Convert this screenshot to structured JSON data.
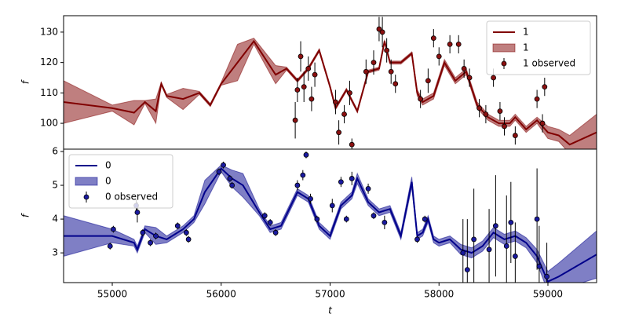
{
  "chart_data": [
    {
      "type": "line",
      "ylabel": "f",
      "legend": "upper right",
      "xlim": [
        54553,
        59447
      ],
      "ylim": [
        91.5,
        135.4
      ],
      "yticks": [
        100,
        110,
        120,
        130
      ],
      "series": [
        {
          "name": "1",
          "kind": "line",
          "color": "#800000",
          "x": [
            54553,
            55000,
            55200,
            55300,
            55400,
            55450,
            55500,
            55650,
            55800,
            55900,
            56000,
            56150,
            56300,
            56500,
            56600,
            56700,
            56800,
            56900,
            57000,
            57050,
            57150,
            57250,
            57350,
            57450,
            57500,
            57550,
            57650,
            57750,
            57800,
            57850,
            57950,
            58050,
            58150,
            58250,
            58350,
            58450,
            58550,
            58650,
            58700,
            58800,
            58900,
            59000,
            59100,
            59200,
            59447
          ],
          "values": [
            107,
            105,
            103.5,
            107,
            104,
            113,
            109,
            108,
            110,
            106,
            113,
            120,
            127,
            116,
            118,
            114,
            118,
            124,
            112,
            105,
            111,
            104,
            117,
            118,
            127,
            120,
            120,
            123,
            110,
            107,
            109,
            120,
            114,
            117,
            106,
            102,
            100,
            100,
            102,
            98,
            101,
            97,
            96,
            93,
            97
          ]
        },
        {
          "name": "1",
          "kind": "band",
          "color": "#800000",
          "x": [
            54553,
            55000,
            55200,
            55300,
            55400,
            55450,
            55500,
            55650,
            55800,
            55900,
            56000,
            56150,
            56300,
            56500,
            56600,
            56700,
            56800,
            56900,
            57000,
            57050,
            57150,
            57250,
            57350,
            57450,
            57500,
            57550,
            57650,
            57750,
            57800,
            57850,
            57950,
            58050,
            58150,
            58250,
            58350,
            58450,
            58550,
            58650,
            58700,
            58800,
            58900,
            59000,
            59100,
            59200,
            59447
          ],
          "lower": [
            100,
            104,
            99.5,
            106.5,
            100,
            112.5,
            108.5,
            104.5,
            109.5,
            105.5,
            112.5,
            114,
            126,
            113,
            117.5,
            113.5,
            117.5,
            123.5,
            111.5,
            104.5,
            110.5,
            103.5,
            116.5,
            117.5,
            126.5,
            119.5,
            119.5,
            122.5,
            109,
            106,
            108,
            119,
            113,
            116,
            105,
            101,
            99,
            99,
            101,
            97,
            100,
            95,
            94,
            90,
            91
          ],
          "upper": [
            114,
            106,
            107.5,
            107.5,
            108,
            113.5,
            109.5,
            111.5,
            110.5,
            106.5,
            113.5,
            126,
            128,
            119,
            118.5,
            114.5,
            118.5,
            124.5,
            112.5,
            105.5,
            111.5,
            104.5,
            117.5,
            118.5,
            127.5,
            120.5,
            120.5,
            123.5,
            111,
            108,
            110,
            121,
            115,
            118,
            107,
            103,
            101,
            101,
            103,
            99,
            102,
            99,
            98,
            96,
            103
          ]
        },
        {
          "name": "1 observed",
          "kind": "points",
          "color": "#8b1010",
          "x": [
            56680,
            56700,
            56730,
            56760,
            56800,
            56830,
            56860,
            57050,
            57080,
            57130,
            57180,
            57200,
            57330,
            57400,
            57450,
            57480,
            57520,
            57560,
            57600,
            57830,
            57900,
            57950,
            58000,
            58100,
            58180,
            58230,
            58280,
            58370,
            58430,
            58500,
            58560,
            58600,
            58700,
            58900,
            58950,
            58970
          ],
          "values": [
            101,
            111,
            122,
            112,
            118,
            108,
            116,
            107,
            97,
            103,
            110,
            93,
            117,
            120,
            131,
            130,
            124,
            117,
            113,
            108,
            114,
            128,
            122,
            126,
            126,
            118,
            115,
            105,
            103,
            115,
            104,
            99,
            96,
            108,
            100,
            112
          ],
          "errors": [
            6,
            4,
            5,
            5,
            4,
            4,
            4,
            4,
            4,
            3,
            4,
            2,
            4,
            4,
            4,
            5,
            4,
            4,
            3,
            3,
            4,
            3,
            3,
            3,
            3,
            3,
            3,
            3,
            3,
            3,
            3,
            3,
            3,
            3,
            3,
            3
          ]
        }
      ]
    },
    {
      "type": "line",
      "ylabel": "f",
      "xlabel": "t",
      "legend": "upper left",
      "xlim": [
        54553,
        59447
      ],
      "xticks": [
        55000,
        56000,
        57000,
        58000,
        59000
      ],
      "ylim": [
        2.12,
        6.07
      ],
      "yticks": [
        3,
        4,
        5,
        6
      ],
      "series": [
        {
          "name": "0",
          "kind": "line",
          "color": "#00008b",
          "x": [
            54553,
            55000,
            55200,
            55230,
            55300,
            55400,
            55500,
            55650,
            55750,
            55850,
            56000,
            56100,
            56200,
            56350,
            56450,
            56550,
            56700,
            56800,
            56900,
            57000,
            57100,
            57200,
            57250,
            57350,
            57450,
            57550,
            57650,
            57750,
            57800,
            57850,
            57900,
            57950,
            58000,
            58100,
            58200,
            58300,
            58400,
            58500,
            58600,
            58700,
            58800,
            58900,
            59000,
            59100,
            59447
          ],
          "values": [
            3.5,
            3.5,
            3.3,
            3.1,
            3.7,
            3.5,
            3.4,
            3.7,
            4.0,
            4.8,
            5.5,
            5.2,
            5.0,
            4.2,
            3.7,
            3.8,
            4.8,
            4.6,
            3.8,
            3.5,
            4.4,
            4.7,
            5.2,
            4.5,
            4.2,
            4.3,
            3.5,
            5.1,
            3.5,
            3.6,
            4.0,
            3.4,
            3.3,
            3.4,
            3.1,
            3.0,
            3.2,
            3.6,
            3.4,
            3.5,
            3.3,
            2.9,
            2.15,
            2.3,
            2.95
          ]
        },
        {
          "name": "0",
          "kind": "band",
          "color": "#00008b",
          "x": [
            54553,
            55000,
            55200,
            55230,
            55300,
            55400,
            55500,
            55650,
            55750,
            55850,
            56000,
            56100,
            56200,
            56350,
            56450,
            56550,
            56700,
            56800,
            56900,
            57000,
            57100,
            57200,
            57250,
            57350,
            57450,
            57550,
            57650,
            57750,
            57800,
            57850,
            57900,
            57950,
            58000,
            58100,
            58200,
            58300,
            58400,
            58500,
            58600,
            58700,
            58800,
            58900,
            59000,
            59100,
            59447
          ],
          "lower": [
            2.9,
            3.3,
            3.2,
            3.0,
            3.6,
            3.25,
            3.3,
            3.6,
            3.9,
            4.45,
            5.4,
            4.95,
            4.65,
            4.1,
            3.6,
            3.7,
            4.7,
            4.5,
            3.7,
            3.4,
            4.3,
            4.6,
            5.05,
            4.4,
            4.1,
            4.2,
            3.4,
            4.95,
            3.4,
            3.5,
            3.9,
            3.3,
            3.2,
            3.3,
            2.95,
            2.85,
            3.05,
            3.45,
            3.25,
            3.35,
            3.15,
            2.7,
            1.85,
            1.9,
            2.25
          ],
          "upper": [
            4.1,
            3.7,
            3.4,
            3.2,
            3.8,
            3.75,
            3.5,
            3.8,
            4.1,
            5.15,
            5.6,
            5.45,
            5.35,
            4.3,
            3.8,
            3.9,
            4.9,
            4.7,
            3.9,
            3.6,
            4.5,
            4.8,
            5.35,
            4.6,
            4.3,
            4.4,
            3.6,
            5.25,
            3.6,
            3.7,
            4.1,
            3.5,
            3.4,
            3.5,
            3.25,
            3.15,
            3.35,
            3.75,
            3.55,
            3.65,
            3.45,
            3.1,
            2.45,
            2.7,
            3.65
          ]
        },
        {
          "name": "0 observed",
          "kind": "points",
          "color": "#1a1aa0",
          "x": [
            54980,
            55010,
            55220,
            55230,
            55280,
            55350,
            55400,
            55600,
            55680,
            55700,
            55980,
            56020,
            56080,
            56100,
            56400,
            56450,
            56500,
            56700,
            56750,
            56780,
            56820,
            56880,
            57020,
            57100,
            57150,
            57200,
            57350,
            57400,
            57500,
            57800,
            57870,
            58220,
            58260,
            58320,
            58460,
            58520,
            58620,
            58660,
            58700,
            58900,
            58920,
            58990
          ],
          "values": [
            3.2,
            3.7,
            4.4,
            4.2,
            3.6,
            3.3,
            3.5,
            3.8,
            3.6,
            3.4,
            5.4,
            5.6,
            5.2,
            5.0,
            4.1,
            3.9,
            3.6,
            5.0,
            5.3,
            5.9,
            4.6,
            4.0,
            4.4,
            5.1,
            4.0,
            5.2,
            4.9,
            4.1,
            3.9,
            3.4,
            4.0,
            3.0,
            2.5,
            3.4,
            3.1,
            3.8,
            3.2,
            3.9,
            2.9,
            4.0,
            2.6,
            2.3
          ],
          "errors": [
            0.1,
            0.1,
            0.2,
            0.3,
            0.1,
            0.1,
            0.1,
            0.1,
            0.1,
            0.1,
            0.1,
            0.1,
            0.1,
            0.1,
            0.1,
            0.1,
            0.1,
            0.15,
            0.15,
            0.1,
            0.15,
            0.1,
            0.2,
            0.15,
            0.1,
            0.2,
            0.15,
            0.1,
            0.2,
            0.1,
            0.1,
            1.0,
            1.5,
            1.5,
            1.2,
            1.5,
            1.5,
            1.2,
            1.0,
            1.5,
            1.2,
            1.0
          ]
        }
      ]
    }
  ]
}
